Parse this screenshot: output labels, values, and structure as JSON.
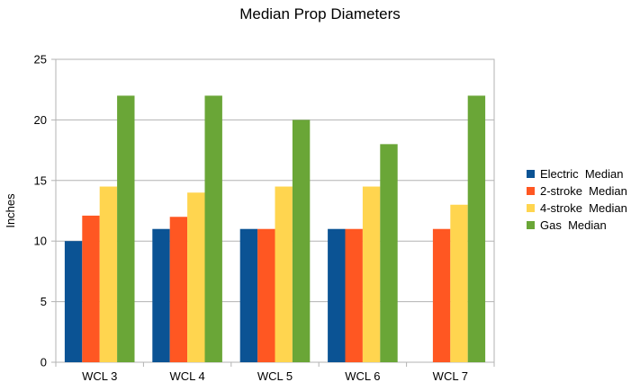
{
  "chart_data": {
    "type": "bar",
    "title": "Median Prop Diameters",
    "xlabel": "",
    "ylabel": "Inches",
    "categories": [
      "WCL 3",
      "WCL 4",
      "WCL 5",
      "WCL 6",
      "WCL 7"
    ],
    "ylim": [
      0,
      25
    ],
    "yticks": [
      0,
      5,
      10,
      15,
      20,
      25
    ],
    "grid": true,
    "legend_position": "right",
    "series": [
      {
        "name": "Electric  Median",
        "color": "#0b5394",
        "values": [
          10,
          11,
          11,
          11,
          null
        ]
      },
      {
        "name": "2-stroke  Median",
        "color": "#ff5722",
        "values": [
          12.1,
          12,
          11,
          11,
          11
        ]
      },
      {
        "name": "4-stroke  Median",
        "color": "#ffd54f",
        "values": [
          14.5,
          14,
          14.5,
          14.5,
          13
        ]
      },
      {
        "name": "Gas  Median",
        "color": "#6aa637",
        "values": [
          22,
          22,
          20,
          18,
          22
        ]
      }
    ]
  }
}
